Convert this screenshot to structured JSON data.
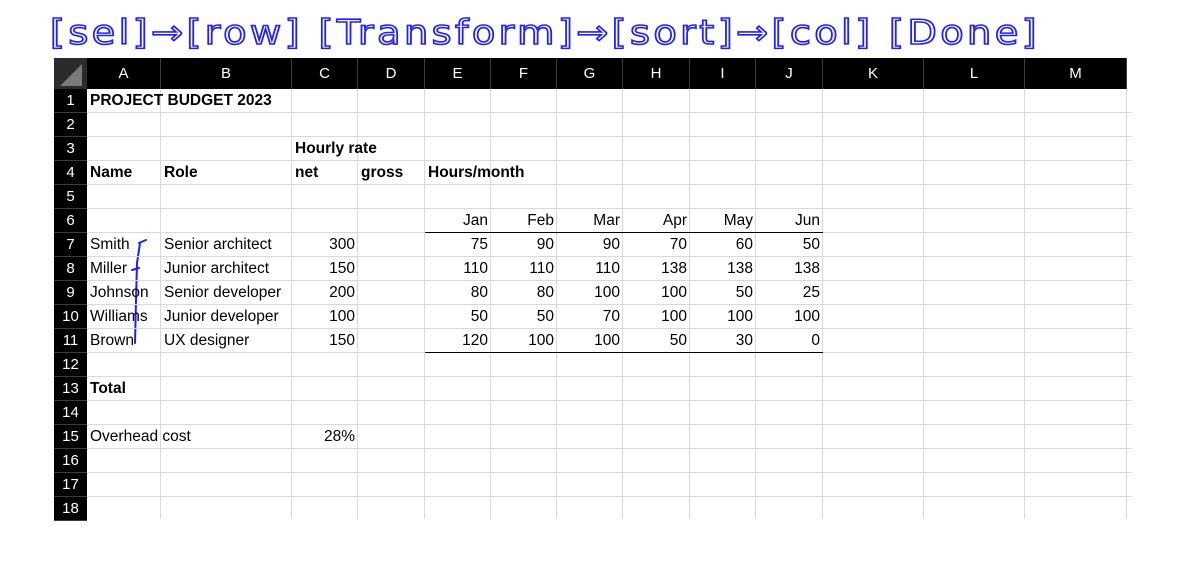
{
  "annotation": {
    "text": "[sel]→[row] [Transform]→[sort]→[col] [Done]",
    "color": "#2020ff"
  },
  "spreadsheet": {
    "columns": [
      "A",
      "B",
      "C",
      "D",
      "E",
      "F",
      "G",
      "H",
      "I",
      "J",
      "K",
      "L",
      "M"
    ],
    "rows": [
      "1",
      "2",
      "3",
      "4",
      "5",
      "6",
      "7",
      "8",
      "9",
      "10",
      "11",
      "12",
      "13",
      "14",
      "15",
      "16",
      "17",
      "18"
    ],
    "title": "PROJECT BUDGET 2023",
    "hourly_rate": "Hourly rate",
    "net": "net",
    "gross": "gross",
    "name_header": "Name",
    "role_header": "Role",
    "hours_header": "Hours/month",
    "months": [
      "Jan",
      "Feb",
      "Mar",
      "Apr",
      "May",
      "Jun"
    ],
    "people": [
      {
        "name": "Smith",
        "role": "Senior architect",
        "rate": "300",
        "hours": [
          "75",
          "90",
          "90",
          "70",
          "60",
          "50"
        ]
      },
      {
        "name": "Miller",
        "role": "Junior architect",
        "rate": "150",
        "hours": [
          "110",
          "110",
          "110",
          "138",
          "138",
          "138"
        ]
      },
      {
        "name": "Johnson",
        "role": "Senior developer",
        "rate": "200",
        "hours": [
          "80",
          "80",
          "100",
          "100",
          "50",
          "25"
        ]
      },
      {
        "name": "Williams",
        "role": "Junior developer",
        "rate": "100",
        "hours": [
          "50",
          "50",
          "70",
          "100",
          "100",
          "100"
        ]
      },
      {
        "name": "Brown",
        "role": "UX designer",
        "rate": "150",
        "hours": [
          "120",
          "100",
          "100",
          "50",
          "30",
          "0"
        ]
      }
    ],
    "total_label": "Total",
    "overhead_label": "Overhead cost",
    "overhead_value": "28%"
  }
}
